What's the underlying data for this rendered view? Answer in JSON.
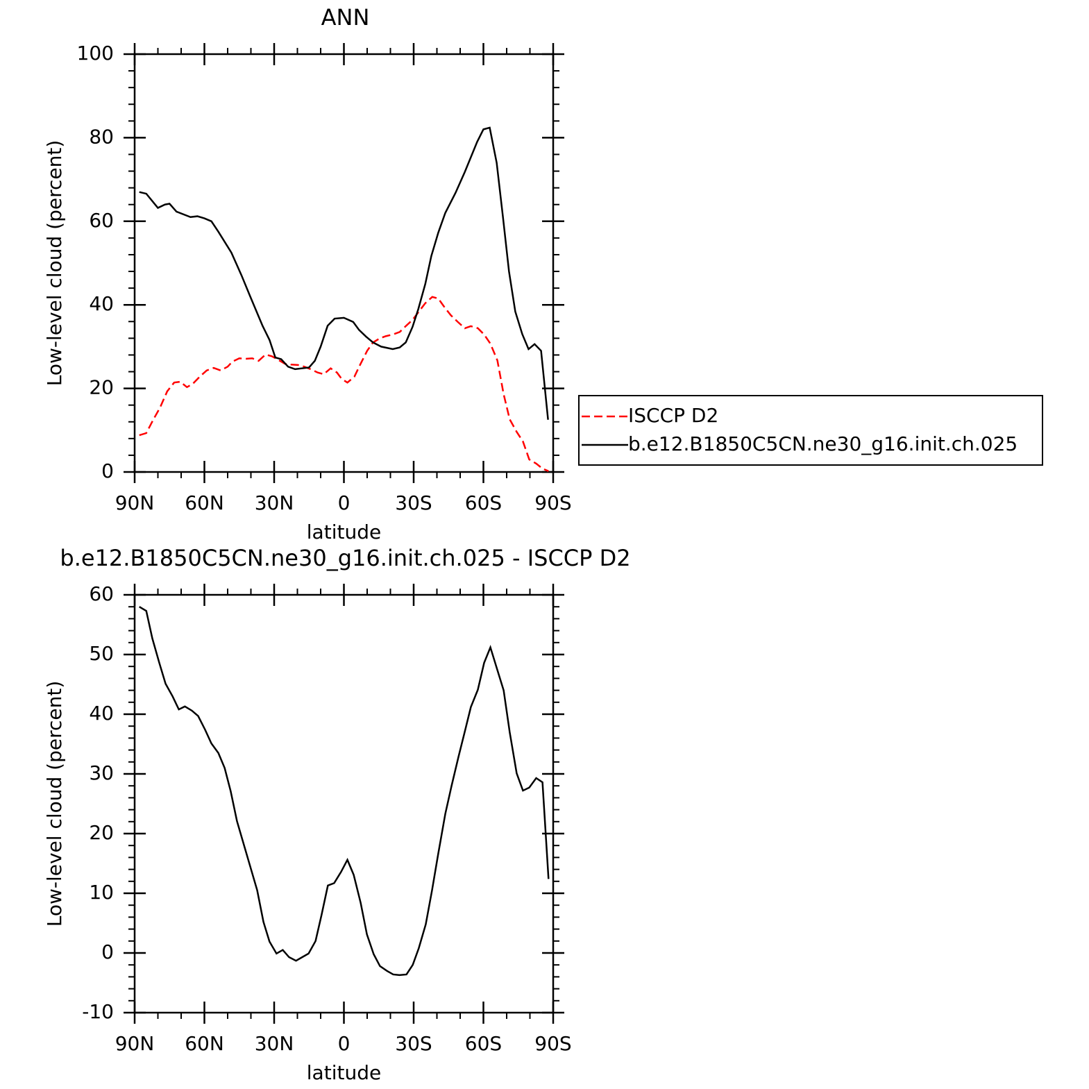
{
  "chart_data": [
    {
      "type": "line",
      "title": "ANN",
      "ylabel": "Low-level cloud (percent)",
      "xlabel": "latitude",
      "xlim": [
        90,
        -90
      ],
      "xticks": [
        {
          "value": 90,
          "label": "90N"
        },
        {
          "value": 60,
          "label": "60N"
        },
        {
          "value": 30,
          "label": "30N"
        },
        0,
        {
          "value": -30,
          "label": "30S"
        },
        {
          "value": -60,
          "label": "60S"
        },
        {
          "value": -90,
          "label": "90S"
        }
      ],
      "xminorticks": [
        80,
        70,
        50,
        40,
        20,
        10,
        -10,
        -20,
        -40,
        -50,
        -70,
        -80
      ],
      "ylim": [
        0,
        100
      ],
      "yticks": [
        0,
        20,
        40,
        60,
        80,
        100
      ],
      "yminorticks": [
        4,
        8,
        12,
        16,
        24,
        28,
        32,
        36,
        44,
        48,
        52,
        56,
        64,
        68,
        72,
        76,
        84,
        88,
        92,
        96
      ],
      "legend": "right",
      "series": [
        {
          "name": "ISCCP D2",
          "color": "#ff0000",
          "style": "dashed",
          "x": [
            88,
            85,
            82,
            79,
            76,
            73,
            70.4,
            67.5,
            65,
            62,
            59,
            56,
            53,
            50,
            48,
            45,
            42,
            39.4,
            36.7,
            33.7,
            31,
            28.4,
            25.4,
            22.7,
            19.7,
            17,
            14.3,
            11.3,
            8.7,
            5.7,
            3,
            1,
            -1.5,
            -4.5,
            -7,
            -10,
            -12.5,
            -15.5,
            -18,
            -21,
            -24,
            -26.6,
            -29.5,
            -32,
            -35,
            -38,
            -40.6,
            -43.3,
            -46,
            -49,
            -52,
            -54.6,
            -57.6,
            -60.3,
            -63,
            -66,
            -68.7,
            -71.3,
            -74.3,
            -77,
            -79.7,
            -82.7,
            -85.4,
            -88
          ],
          "values": [
            8.8,
            9.3,
            12.5,
            15.5,
            19.3,
            21.4,
            21.6,
            20.3,
            21.1,
            22.8,
            24.3,
            24.9,
            24.3,
            25.2,
            26.4,
            27.2,
            27.1,
            27.2,
            26.6,
            28.1,
            27.7,
            26.9,
            25.9,
            25.7,
            25.6,
            25.2,
            24.6,
            23.8,
            23.4,
            24.8,
            23.8,
            22.3,
            21.4,
            22.8,
            25.7,
            29,
            31,
            32,
            32.5,
            32.9,
            33.5,
            34.9,
            36.4,
            38.2,
            40.4,
            41.9,
            41.5,
            39.4,
            37.5,
            35.9,
            34.4,
            34.9,
            34.4,
            32.9,
            30.7,
            26.7,
            18.6,
            12.6,
            9.6,
            7.3,
            3,
            2,
            0.8,
            0.2
          ]
        },
        {
          "name": "b.e12.B1850C5CN.ne30_g16.init.ch.025",
          "color": "#000000",
          "style": "solid",
          "x": [
            88,
            85,
            80,
            77,
            75,
            72,
            66,
            63,
            60,
            57,
            54,
            48.4,
            44,
            40.3,
            35,
            32,
            29.5,
            27,
            24,
            21,
            15,
            12.5,
            10,
            7,
            4,
            0,
            -4,
            -6.5,
            -9.5,
            -12.5,
            -16,
            -21,
            -24,
            -26.6,
            -29.5,
            -32,
            -35,
            -37.6,
            -40.6,
            -43.6,
            -48,
            -52,
            -57.3,
            -60,
            -62.7,
            -65.7,
            -68.4,
            -71,
            -73.7,
            -76.7,
            -79.4,
            -82,
            -84.8,
            -87.8
          ],
          "values": [
            67,
            66.6,
            63.2,
            64,
            64.2,
            62.3,
            61,
            61.2,
            60.7,
            60,
            57.5,
            52.5,
            47,
            42,
            35,
            31.6,
            27.4,
            27,
            25.2,
            24.6,
            25,
            26.6,
            30,
            35,
            36.7,
            36.9,
            35.9,
            34,
            32.4,
            31,
            30,
            29.4,
            29.8,
            31,
            34.7,
            39,
            45,
            51.7,
            57.3,
            62,
            66.8,
            71.8,
            79,
            82,
            82.4,
            74,
            61,
            48,
            38.4,
            33,
            29.4,
            30.6,
            29,
            12.5
          ]
        }
      ]
    },
    {
      "type": "line",
      "title": "b.e12.B1850C5CN.ne30_g16.init.ch.025 - ISCCP D2",
      "ylabel": "Low-level cloud (percent)",
      "xlabel": "latitude",
      "xlim": [
        90,
        -90
      ],
      "xticks": [
        {
          "value": 90,
          "label": "90N"
        },
        {
          "value": 60,
          "label": "60N"
        },
        {
          "value": 30,
          "label": "30N"
        },
        0,
        {
          "value": -30,
          "label": "30S"
        },
        {
          "value": -60,
          "label": "60S"
        },
        {
          "value": -90,
          "label": "90S"
        }
      ],
      "xminorticks": [
        80,
        70,
        50,
        40,
        20,
        10,
        -10,
        -20,
        -40,
        -50,
        -70,
        -80
      ],
      "ylim": [
        -10,
        60
      ],
      "yticks": [
        -10,
        0,
        10,
        20,
        30,
        40,
        50,
        60
      ],
      "yminorticks": [
        -8,
        -6,
        -4,
        -2,
        2,
        4,
        6,
        8,
        12,
        14,
        16,
        18,
        22,
        24,
        26,
        28,
        32,
        34,
        36,
        38,
        42,
        44,
        46,
        48,
        52,
        54,
        56,
        58
      ],
      "series": [
        {
          "color": "#000000",
          "style": "solid",
          "x": [
            88,
            85,
            82.4,
            79.4,
            76.7,
            73.7,
            71,
            68.4,
            65.4,
            62.7,
            59.7,
            57,
            54,
            51.3,
            48.7,
            46,
            43,
            40.3,
            37.3,
            34.6,
            32,
            29,
            26.3,
            23.6,
            20.6,
            17.9,
            15.2,
            12.2,
            9.6,
            6.9,
            4.2,
            1.2,
            -1.5,
            -4.2,
            -7.2,
            -9.9,
            -12.8,
            -15.5,
            -18.5,
            -21.2,
            -23.9,
            -26.9,
            -29.6,
            -32.2,
            -35.2,
            -37.9,
            -40.6,
            -43.6,
            -46.3,
            -49.3,
            -52,
            -54.6,
            -57.6,
            -60.3,
            -63,
            -66,
            -68.7,
            -71.3,
            -74.3,
            -77,
            -79.7,
            -82.7,
            -85.4,
            -88
          ],
          "values": [
            58,
            57.3,
            52.7,
            48.6,
            45.1,
            43,
            40.8,
            41.3,
            40.6,
            39.7,
            37.4,
            35.1,
            33.5,
            31,
            27.1,
            22.1,
            18.1,
            14.5,
            10.5,
            5.2,
            1.9,
            -0.1,
            0.5,
            -0.7,
            -1.3,
            -0.7,
            -0.1,
            2,
            6.4,
            11.3,
            11.7,
            13.6,
            15.6,
            13.1,
            8.4,
            3.1,
            -0.2,
            -2.2,
            -3,
            -3.6,
            -3.7,
            -3.6,
            -2,
            0.8,
            4.8,
            10.5,
            16.7,
            23.3,
            28,
            32.9,
            37.1,
            41.2,
            44.1,
            48.6,
            51.2,
            47.4,
            44,
            37,
            30.1,
            27.2,
            27.7,
            29.3,
            28.6,
            12.4
          ]
        }
      ]
    }
  ]
}
